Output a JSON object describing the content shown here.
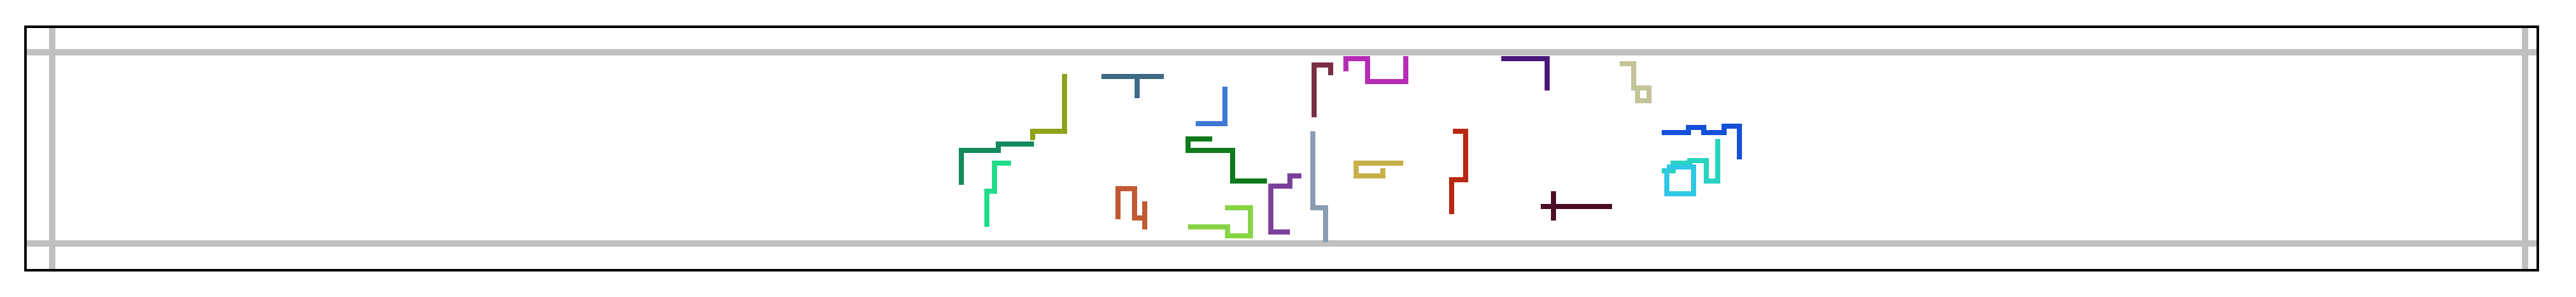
{
  "figure": {
    "background": "#ffffff",
    "frame_color": "#000000",
    "grid_color": "#c0c0c0"
  },
  "glyphs": [
    {
      "name": "glyph-olive",
      "color": "#8fa21a"
    },
    {
      "name": "glyph-teal-green",
      "color": "#128a5c"
    },
    {
      "name": "glyph-mint",
      "color": "#20dd8a"
    },
    {
      "name": "glyph-slate",
      "color": "#3e6a86"
    },
    {
      "name": "glyph-copper",
      "color": "#c05a32"
    },
    {
      "name": "glyph-blue",
      "color": "#3f78d4"
    },
    {
      "name": "glyph-green",
      "color": "#0e7a1c"
    },
    {
      "name": "glyph-lime",
      "color": "#86d444"
    },
    {
      "name": "glyph-violet",
      "color": "#7b3f9e"
    },
    {
      "name": "glyph-plum",
      "color": "#7a2e44"
    },
    {
      "name": "glyph-magenta",
      "color": "#b62cb4"
    },
    {
      "name": "glyph-steel",
      "color": "#8a9cb2"
    },
    {
      "name": "glyph-gold",
      "color": "#c8b048"
    },
    {
      "name": "glyph-indigo",
      "color": "#4a1878"
    },
    {
      "name": "glyph-red",
      "color": "#b82810"
    },
    {
      "name": "glyph-maroon",
      "color": "#4a0e26"
    },
    {
      "name": "glyph-khaki",
      "color": "#c4c49a"
    },
    {
      "name": "glyph-royal-blue",
      "color": "#1450d8"
    },
    {
      "name": "glyph-turquoise",
      "color": "#28d4c0"
    },
    {
      "name": "glyph-cyan",
      "color": "#30c8e4"
    }
  ]
}
